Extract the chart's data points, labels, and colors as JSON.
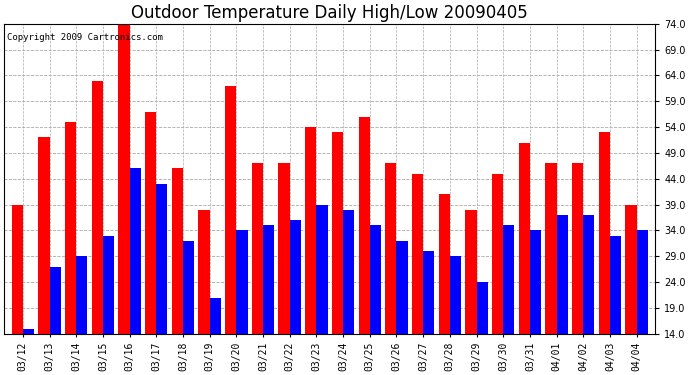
{
  "title": "Outdoor Temperature Daily High/Low 20090405",
  "copyright": "Copyright 2009 Cartronics.com",
  "dates": [
    "03/12",
    "03/13",
    "03/14",
    "03/15",
    "03/16",
    "03/17",
    "03/18",
    "03/19",
    "03/20",
    "03/21",
    "03/22",
    "03/23",
    "03/24",
    "03/25",
    "03/26",
    "03/27",
    "03/28",
    "03/29",
    "03/30",
    "03/31",
    "04/01",
    "04/02",
    "04/03",
    "04/04"
  ],
  "highs": [
    39,
    52,
    55,
    63,
    74,
    57,
    46,
    38,
    62,
    47,
    47,
    54,
    53,
    56,
    47,
    45,
    41,
    38,
    45,
    51,
    47,
    47,
    53,
    39
  ],
  "lows": [
    15,
    27,
    29,
    33,
    46,
    43,
    32,
    21,
    34,
    35,
    36,
    39,
    38,
    35,
    32,
    30,
    29,
    24,
    35,
    34,
    37,
    37,
    33,
    34
  ],
  "high_color": "#ff0000",
  "low_color": "#0000ff",
  "ymin": 14,
  "ymax": 74,
  "yticks": [
    14.0,
    19.0,
    24.0,
    29.0,
    34.0,
    39.0,
    44.0,
    49.0,
    54.0,
    59.0,
    64.0,
    69.0,
    74.0
  ],
  "bg_color": "#ffffff",
  "grid_color": "#aaaaaa",
  "bar_width": 0.42,
  "title_fontsize": 12,
  "axis_fontsize": 7,
  "copyright_fontsize": 6.5
}
